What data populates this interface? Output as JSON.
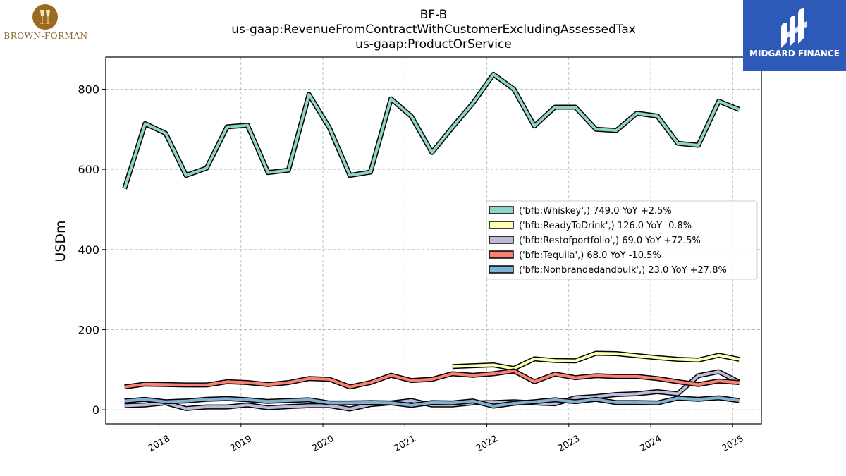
{
  "header": {
    "ticker": "BF-B",
    "concept": "us-gaap:RevenueFromContractWithCustomerExcludingAssessedTax",
    "axis": "us-gaap:ProductOrService"
  },
  "logos": {
    "left_brand": "BROWN-FORMAN",
    "right_brand": "MIDGARD FINANCE"
  },
  "colors": {
    "background": "#ffffff",
    "grid": "#b0b0b0",
    "right_logo_bg": "#2d5ab8",
    "left_logo": "#9a6a1f"
  },
  "chart_data": {
    "type": "line",
    "ylabel": "USDm",
    "ylim": [
      -35,
      880
    ],
    "yticks": [
      0,
      200,
      400,
      600,
      800
    ],
    "xlim": [
      2017.35,
      2025.35
    ],
    "xticks": [
      {
        "value": 2018.0,
        "label": "2018"
      },
      {
        "value": 2019.0,
        "label": "2019"
      },
      {
        "value": 2020.0,
        "label": "2020"
      },
      {
        "value": 2021.0,
        "label": "2021"
      },
      {
        "value": 2022.0,
        "label": "2022"
      },
      {
        "value": 2023.0,
        "label": "2023"
      },
      {
        "value": 2024.0,
        "label": "2024"
      },
      {
        "value": 2025.0,
        "label": "2025"
      }
    ],
    "grid": true,
    "legend_position": "center-right",
    "series": [
      {
        "name": "('bfb:Whiskey',) 749.0 YoY +2.5%",
        "color": "#8dd3c7",
        "x": [
          2017.58,
          2017.83,
          2018.08,
          2018.33,
          2018.58,
          2018.83,
          2019.08,
          2019.33,
          2019.58,
          2019.83,
          2020.08,
          2020.33,
          2020.58,
          2020.83,
          2021.08,
          2021.33,
          2021.58,
          2021.83,
          2022.08,
          2022.33,
          2022.58,
          2022.83,
          2023.08,
          2023.33,
          2023.58,
          2023.83,
          2024.08,
          2024.33,
          2024.58,
          2024.83,
          2025.08
        ],
        "y": [
          552,
          714,
          690,
          585,
          603,
          706,
          710,
          592,
          598,
          787,
          703,
          585,
          593,
          776,
          732,
          642,
          705,
          765,
          837,
          800,
          708,
          755,
          755,
          700,
          697,
          740,
          733,
          665,
          660,
          770,
          749
        ]
      },
      {
        "name": "('bfb:ReadyToDrink',) 126.0 YoY -0.8%",
        "color": "#ffffb3",
        "x": [
          2021.58,
          2021.83,
          2022.08,
          2022.33,
          2022.58,
          2022.83,
          2023.08,
          2023.33,
          2023.58,
          2023.83,
          2024.08,
          2024.33,
          2024.58,
          2024.83,
          2025.08
        ],
        "y": [
          108,
          110,
          112,
          103,
          127,
          123,
          122,
          141,
          140,
          135,
          130,
          126,
          124,
          136,
          126
        ]
      },
      {
        "name": "('bfb:Restofportfolio',) 69.0 YoY +72.5%",
        "color": "#bebada",
        "x": [
          2017.58,
          2017.83,
          2018.08,
          2018.33,
          2018.58,
          2018.83,
          2019.08,
          2019.33,
          2019.58,
          2019.83,
          2020.08,
          2020.33,
          2020.58,
          2020.83,
          2021.08,
          2021.33,
          2021.58,
          2021.83,
          2022.08,
          2022.33,
          2022.58,
          2022.83,
          2023.08,
          2023.33,
          2023.58,
          2023.83,
          2024.08,
          2024.33,
          2024.58,
          2024.83,
          2025.08
        ],
        "y": [
          10,
          12,
          17,
          3,
          7,
          7,
          12,
          5,
          8,
          10,
          10,
          2,
          13,
          17,
          23,
          12,
          12,
          17,
          18,
          20,
          17,
          15,
          30,
          33,
          38,
          40,
          45,
          40,
          85,
          95,
          69
        ]
      },
      {
        "name": "('bfb:Tequila',) 68.0 YoY -10.5%",
        "color": "#fb8072",
        "x": [
          2017.58,
          2017.83,
          2018.08,
          2018.33,
          2018.58,
          2018.83,
          2019.08,
          2019.33,
          2019.58,
          2019.83,
          2020.08,
          2020.33,
          2020.58,
          2020.83,
          2021.08,
          2021.33,
          2021.58,
          2021.83,
          2022.08,
          2022.33,
          2022.58,
          2022.83,
          2023.08,
          2023.33,
          2023.58,
          2023.83,
          2024.08,
          2024.33,
          2024.58,
          2024.83,
          2025.08
        ],
        "y": [
          57,
          64,
          63,
          62,
          62,
          70,
          68,
          63,
          68,
          78,
          76,
          57,
          68,
          86,
          73,
          76,
          90,
          86,
          90,
          97,
          70,
          89,
          80,
          85,
          83,
          83,
          78,
          70,
          63,
          72,
          68
        ]
      },
      {
        "name": "('bfb:Nonbrandedandbulk',) 23.0 YoY +27.8%",
        "color": "#80b1d3",
        "x": [
          2017.58,
          2017.83,
          2018.08,
          2018.33,
          2018.58,
          2018.83,
          2019.08,
          2019.33,
          2019.58,
          2019.83,
          2020.08,
          2020.33,
          2020.58,
          2020.83,
          2021.08,
          2021.33,
          2021.58,
          2021.83,
          2022.08,
          2022.33,
          2022.58,
          2022.83,
          2023.08,
          2023.33,
          2023.58,
          2023.83,
          2024.08,
          2024.33,
          2024.58,
          2024.83,
          2025.08
        ],
        "y": [
          22,
          26,
          20,
          22,
          26,
          28,
          25,
          21,
          23,
          25,
          17,
          17,
          18,
          17,
          11,
          18,
          17,
          22,
          9,
          16,
          20,
          25,
          20,
          26,
          18,
          18,
          17,
          29,
          26,
          30,
          23
        ]
      }
    ]
  }
}
